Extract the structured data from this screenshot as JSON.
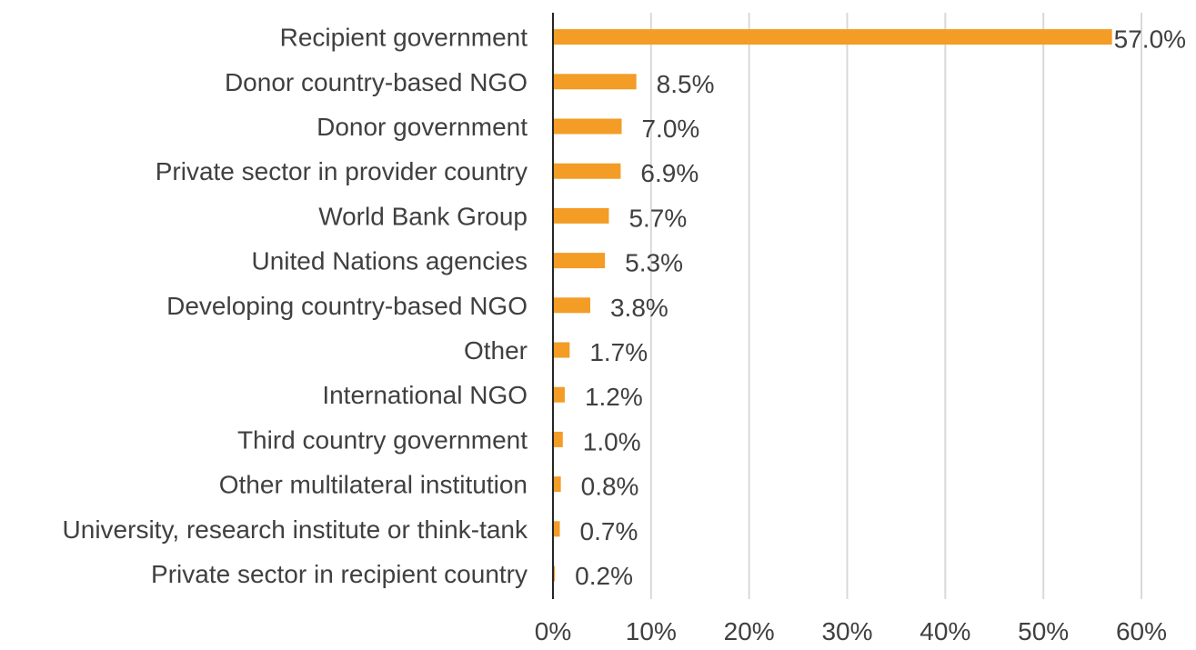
{
  "chart_data": {
    "type": "bar",
    "orientation": "horizontal",
    "categories": [
      "Recipient government",
      "Donor country-based NGO",
      "Donor government",
      "Private sector in provider country",
      "World Bank Group",
      "United Nations agencies",
      "Developing country-based NGO",
      "Other",
      "International NGO",
      "Third country government",
      "Other multilateral institution",
      "University, research institute or think-tank",
      "Private sector in recipient country"
    ],
    "values": [
      57.0,
      8.5,
      7.0,
      6.9,
      5.7,
      5.3,
      3.8,
      1.7,
      1.2,
      1.0,
      0.8,
      0.7,
      0.2
    ],
    "value_labels": [
      "57.0%",
      "8.5%",
      "7.0%",
      "6.9%",
      "5.7%",
      "5.3%",
      "3.8%",
      "1.7%",
      "1.2%",
      "1.0%",
      "0.8%",
      "0.7%",
      "0.2%"
    ],
    "xlim": [
      0,
      60
    ],
    "xticks": [
      0,
      10,
      20,
      30,
      40,
      50,
      60
    ],
    "xtick_labels": [
      "0%",
      "10%",
      "20%",
      "30%",
      "40%",
      "50%",
      "60%"
    ],
    "title": "",
    "xlabel": "",
    "ylabel": "",
    "grid": "vertical",
    "legend": "none",
    "bar_color": "#F39C26"
  }
}
